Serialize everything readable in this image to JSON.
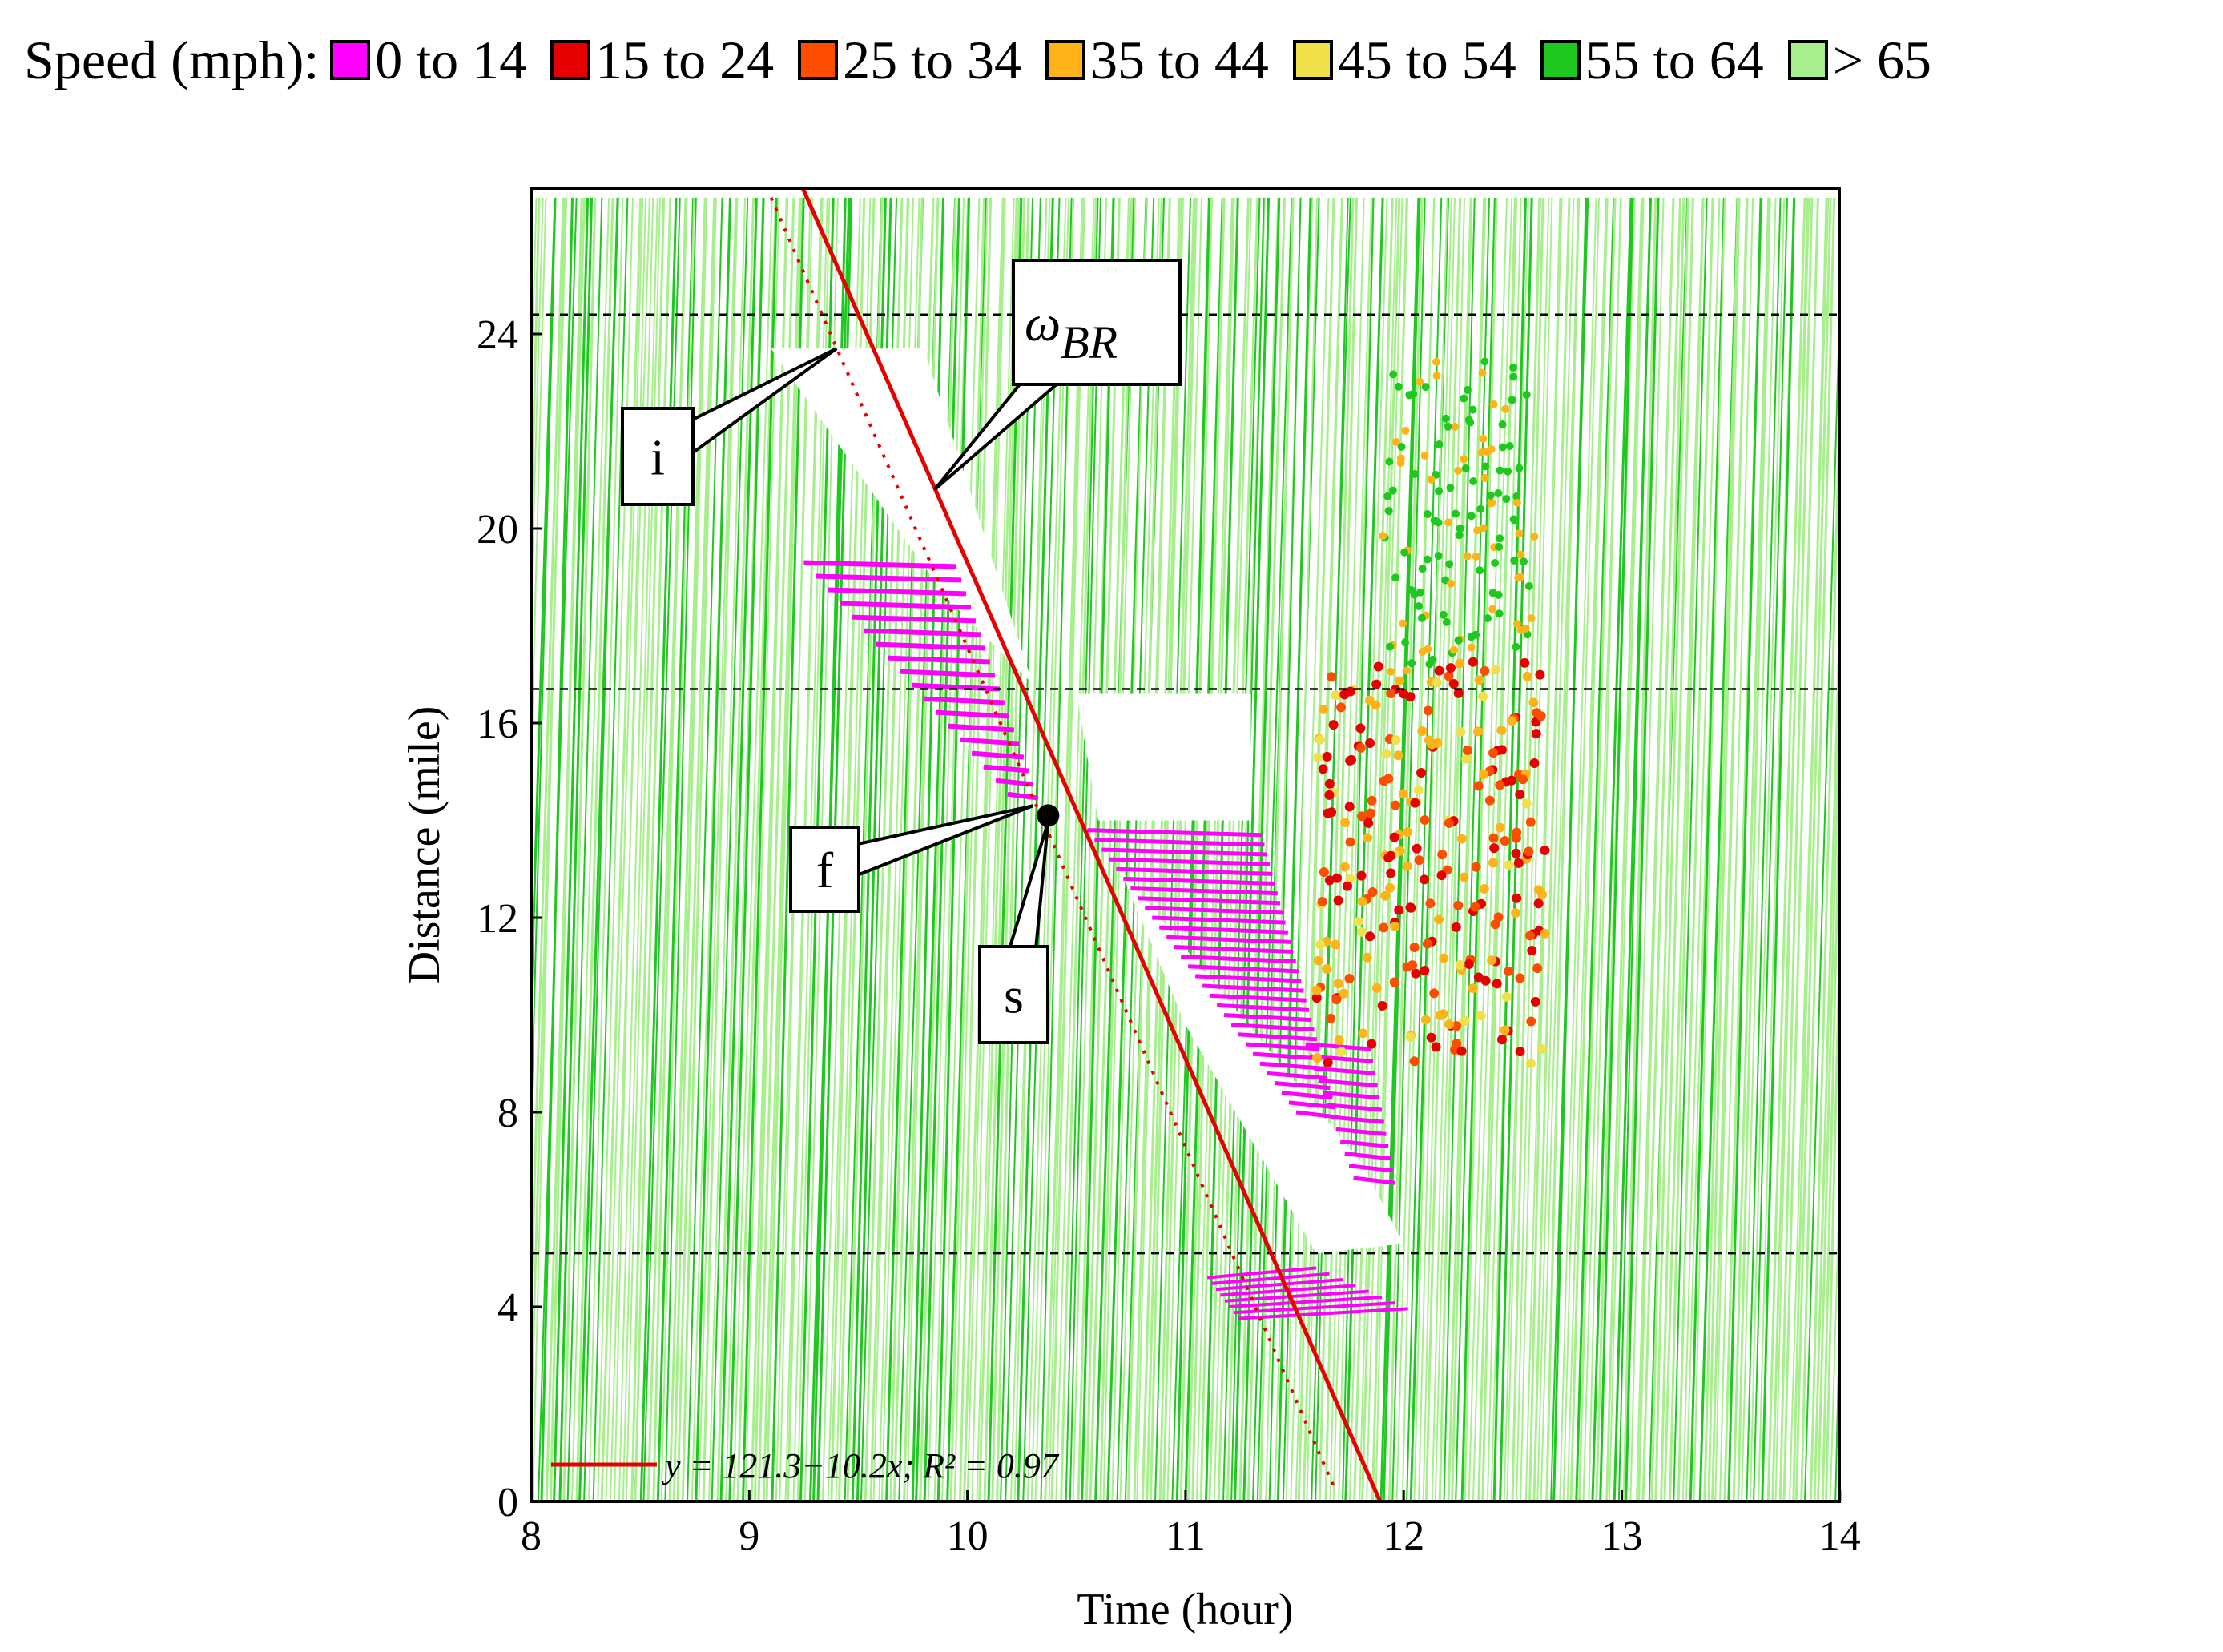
{
  "legend": {
    "title": "Speed (mph):",
    "items": [
      {
        "label": "0 to 14",
        "color": "#ff00ff"
      },
      {
        "label": "15 to 24",
        "color": "#e60000"
      },
      {
        "label": "25 to 34",
        "color": "#ff4d00"
      },
      {
        "label": "35 to 44",
        "color": "#ffb319"
      },
      {
        "label": "45 to 54",
        "color": "#f0e04a"
      },
      {
        "label": "55 to 64",
        "color": "#1ec81e"
      },
      {
        "label": "> 65",
        "color": "#a6ef8c"
      }
    ]
  },
  "chart_data": {
    "type": "scatter",
    "xlabel": "Time (hour)",
    "ylabel": "Distance (mile)",
    "xlim": [
      8,
      14
    ],
    "ylim": [
      0,
      27
    ],
    "xticks": [
      "8",
      "9",
      "10",
      "11",
      "12",
      "13",
      "14"
    ],
    "yticks": [
      "0",
      "4",
      "8",
      "12",
      "16",
      "20",
      "24"
    ],
    "reference_lines": [
      24.4,
      16.7,
      5.1
    ],
    "fit_line": {
      "label": "y = 121.3−10.2x; R² = 0.97",
      "intercept": 121.3,
      "slope": -10.2,
      "color": "#e60000"
    },
    "dotted_line": {
      "x": [
        9.1,
        11.68
      ],
      "y": [
        26.8,
        0.3
      ],
      "color": "#e60000"
    },
    "callouts": [
      {
        "label": "i",
        "point": [
          9.4,
          23.7
        ]
      },
      {
        "label": "ωBR",
        "point": [
          9.85,
          20.8
        ]
      },
      {
        "label": "f",
        "point": [
          10.3,
          14.3
        ]
      },
      {
        "label": "s",
        "point": [
          10.37,
          14.1
        ]
      }
    ],
    "point_s": {
      "x": 10.37,
      "y": 14.1
    },
    "background_color": "#a6ef8c",
    "trajectories_note": ""
  }
}
